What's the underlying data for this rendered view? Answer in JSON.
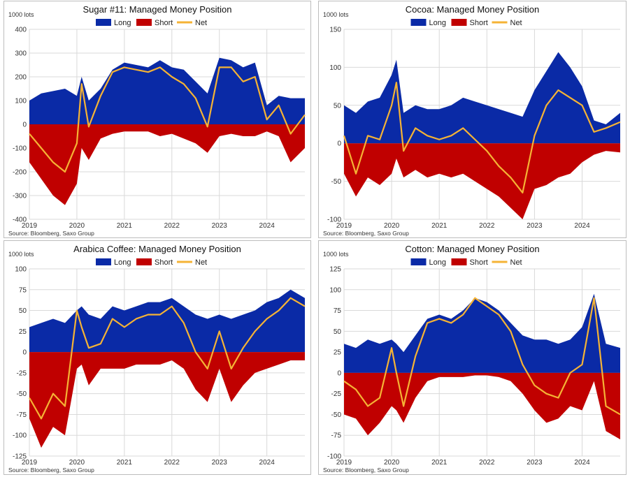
{
  "colors": {
    "long": "#0a2aa6",
    "short": "#c00000",
    "net": "#f5b335",
    "grid": "#d9d9d9"
  },
  "chart_data": [
    {
      "type": "area",
      "title": "Sugar #11: Managed Money Position",
      "unit_label": "1000 lots",
      "source": "Source: Bloomberg, Saxo Group",
      "ylim": [
        -400,
        400
      ],
      "yticks": [
        -400,
        -300,
        -200,
        -100,
        0,
        100,
        200,
        300,
        400
      ],
      "xlim": [
        2019.0,
        2024.8
      ],
      "xticks": [
        "2019",
        "2020",
        "2021",
        "2022",
        "2023",
        "2024"
      ],
      "series": [
        {
          "name": "Long",
          "x": [
            2019.0,
            2019.25,
            2019.5,
            2019.75,
            2020.0,
            2020.1,
            2020.25,
            2020.5,
            2020.75,
            2021.0,
            2021.25,
            2021.5,
            2021.75,
            2022.0,
            2022.25,
            2022.5,
            2022.75,
            2023.0,
            2023.25,
            2023.5,
            2023.75,
            2024.0,
            2024.25,
            2024.5,
            2024.8
          ],
          "values": [
            100,
            130,
            140,
            150,
            120,
            200,
            100,
            150,
            230,
            260,
            250,
            240,
            270,
            240,
            230,
            180,
            130,
            280,
            270,
            240,
            260,
            80,
            120,
            110,
            110
          ]
        },
        {
          "name": "Short",
          "x": [
            2019.0,
            2019.25,
            2019.5,
            2019.75,
            2020.0,
            2020.1,
            2020.25,
            2020.5,
            2020.75,
            2021.0,
            2021.25,
            2021.5,
            2021.75,
            2022.0,
            2022.25,
            2022.5,
            2022.75,
            2023.0,
            2023.25,
            2023.5,
            2023.75,
            2024.0,
            2024.25,
            2024.5,
            2024.8
          ],
          "values": [
            -160,
            -230,
            -300,
            -340,
            -250,
            -100,
            -150,
            -60,
            -40,
            -30,
            -30,
            -30,
            -50,
            -40,
            -60,
            -80,
            -120,
            -50,
            -40,
            -50,
            -50,
            -30,
            -50,
            -160,
            -100
          ]
        },
        {
          "name": "Net",
          "x": [
            2019.0,
            2019.25,
            2019.5,
            2019.75,
            2020.0,
            2020.1,
            2020.25,
            2020.5,
            2020.75,
            2021.0,
            2021.25,
            2021.5,
            2021.75,
            2022.0,
            2022.25,
            2022.5,
            2022.75,
            2023.0,
            2023.25,
            2023.5,
            2023.75,
            2024.0,
            2024.25,
            2024.5,
            2024.8
          ],
          "values": [
            -40,
            -100,
            -160,
            -200,
            -80,
            170,
            -10,
            120,
            220,
            240,
            230,
            220,
            240,
            200,
            170,
            110,
            -10,
            240,
            240,
            180,
            200,
            20,
            80,
            -40,
            40
          ]
        }
      ]
    },
    {
      "type": "area",
      "title": "Cocoa: Managed Money Position",
      "unit_label": "1000 lots",
      "source": "Source: Bloomberg, Saxo Group",
      "ylim": [
        -100,
        150
      ],
      "yticks": [
        -100,
        -50,
        0,
        50,
        100,
        150
      ],
      "xlim": [
        2019.0,
        2024.8
      ],
      "xticks": [
        "2019",
        "2020",
        "2021",
        "2022",
        "2023",
        "2024"
      ],
      "series": [
        {
          "name": "Long",
          "x": [
            2019.0,
            2019.25,
            2019.5,
            2019.75,
            2020.0,
            2020.1,
            2020.25,
            2020.5,
            2020.75,
            2021.0,
            2021.25,
            2021.5,
            2021.75,
            2022.0,
            2022.25,
            2022.5,
            2022.75,
            2023.0,
            2023.25,
            2023.5,
            2023.75,
            2024.0,
            2024.25,
            2024.5,
            2024.8
          ],
          "values": [
            50,
            40,
            55,
            60,
            90,
            110,
            40,
            50,
            45,
            45,
            50,
            60,
            55,
            50,
            45,
            40,
            35,
            70,
            95,
            120,
            100,
            75,
            30,
            25,
            40
          ]
        },
        {
          "name": "Short",
          "x": [
            2019.0,
            2019.25,
            2019.5,
            2019.75,
            2020.0,
            2020.1,
            2020.25,
            2020.5,
            2020.75,
            2021.0,
            2021.25,
            2021.5,
            2021.75,
            2022.0,
            2022.25,
            2022.5,
            2022.75,
            2023.0,
            2023.25,
            2023.5,
            2023.75,
            2024.0,
            2024.25,
            2024.5,
            2024.8
          ],
          "values": [
            -40,
            -70,
            -45,
            -55,
            -40,
            -20,
            -45,
            -35,
            -45,
            -40,
            -45,
            -40,
            -50,
            -60,
            -70,
            -85,
            -100,
            -60,
            -55,
            -45,
            -40,
            -25,
            -15,
            -10,
            -12
          ]
        },
        {
          "name": "Net",
          "x": [
            2019.0,
            2019.25,
            2019.5,
            2019.75,
            2020.0,
            2020.1,
            2020.25,
            2020.5,
            2020.75,
            2021.0,
            2021.25,
            2021.5,
            2021.75,
            2022.0,
            2022.25,
            2022.5,
            2022.75,
            2023.0,
            2023.25,
            2023.5,
            2023.75,
            2024.0,
            2024.25,
            2024.5,
            2024.8
          ],
          "values": [
            10,
            -40,
            10,
            5,
            50,
            80,
            -10,
            20,
            10,
            5,
            10,
            20,
            5,
            -10,
            -30,
            -45,
            -65,
            10,
            50,
            70,
            60,
            50,
            15,
            20,
            28
          ]
        }
      ]
    },
    {
      "type": "area",
      "title": "Arabica Coffee: Managed Money Position",
      "unit_label": "1000 lots",
      "source": "Source: Bloomberg, Saxo Group",
      "ylim": [
        -125,
        100
      ],
      "yticks": [
        -125,
        -100,
        -75,
        -50,
        -25,
        0,
        25,
        50,
        75,
        100
      ],
      "xlim": [
        2019.0,
        2024.8
      ],
      "xticks": [
        "2019",
        "2020",
        "2021",
        "2022",
        "2023",
        "2024"
      ],
      "series": [
        {
          "name": "Long",
          "x": [
            2019.0,
            2019.25,
            2019.5,
            2019.75,
            2020.0,
            2020.1,
            2020.25,
            2020.5,
            2020.75,
            2021.0,
            2021.25,
            2021.5,
            2021.75,
            2022.0,
            2022.25,
            2022.5,
            2022.75,
            2023.0,
            2023.25,
            2023.5,
            2023.75,
            2024.0,
            2024.25,
            2024.5,
            2024.8
          ],
          "values": [
            30,
            35,
            40,
            35,
            50,
            55,
            45,
            40,
            55,
            50,
            55,
            60,
            60,
            65,
            55,
            45,
            40,
            45,
            40,
            45,
            50,
            60,
            65,
            75,
            65
          ]
        },
        {
          "name": "Short",
          "x": [
            2019.0,
            2019.25,
            2019.5,
            2019.75,
            2020.0,
            2020.1,
            2020.25,
            2020.5,
            2020.75,
            2021.0,
            2021.25,
            2021.5,
            2021.75,
            2022.0,
            2022.25,
            2022.5,
            2022.75,
            2023.0,
            2023.25,
            2023.5,
            2023.75,
            2024.0,
            2024.25,
            2024.5,
            2024.8
          ],
          "values": [
            -80,
            -115,
            -90,
            -100,
            -20,
            -15,
            -40,
            -20,
            -20,
            -20,
            -15,
            -15,
            -15,
            -10,
            -20,
            -45,
            -60,
            -20,
            -60,
            -40,
            -25,
            -20,
            -15,
            -10,
            -10
          ]
        },
        {
          "name": "Net",
          "x": [
            2019.0,
            2019.25,
            2019.5,
            2019.75,
            2020.0,
            2020.1,
            2020.25,
            2020.5,
            2020.75,
            2021.0,
            2021.25,
            2021.5,
            2021.75,
            2022.0,
            2022.25,
            2022.5,
            2022.75,
            2023.0,
            2023.25,
            2023.5,
            2023.75,
            2024.0,
            2024.25,
            2024.5,
            2024.8
          ],
          "values": [
            -55,
            -80,
            -50,
            -65,
            50,
            30,
            5,
            10,
            40,
            30,
            40,
            45,
            45,
            55,
            35,
            0,
            -20,
            25,
            -20,
            5,
            25,
            40,
            50,
            65,
            55
          ]
        }
      ]
    },
    {
      "type": "area",
      "title": "Cotton: Managed Money Position",
      "unit_label": "1000 lots",
      "source": "Source: Bloomberg, Saxo Group",
      "ylim": [
        -100,
        125
      ],
      "yticks": [
        -100,
        -75,
        -50,
        -25,
        0,
        25,
        50,
        75,
        100,
        125
      ],
      "xlim": [
        2019.0,
        2024.8
      ],
      "xticks": [
        "2019",
        "2020",
        "2021",
        "2022",
        "2023",
        "2024"
      ],
      "series": [
        {
          "name": "Long",
          "x": [
            2019.0,
            2019.25,
            2019.5,
            2019.75,
            2020.0,
            2020.1,
            2020.25,
            2020.5,
            2020.75,
            2021.0,
            2021.25,
            2021.5,
            2021.75,
            2022.0,
            2022.25,
            2022.5,
            2022.75,
            2023.0,
            2023.25,
            2023.5,
            2023.75,
            2024.0,
            2024.25,
            2024.5,
            2024.8
          ],
          "values": [
            35,
            30,
            40,
            35,
            40,
            35,
            25,
            45,
            65,
            70,
            65,
            75,
            90,
            85,
            75,
            60,
            45,
            40,
            40,
            35,
            40,
            55,
            95,
            35,
            30
          ]
        },
        {
          "name": "Short",
          "x": [
            2019.0,
            2019.25,
            2019.5,
            2019.75,
            2020.0,
            2020.1,
            2020.25,
            2020.5,
            2020.75,
            2021.0,
            2021.25,
            2021.5,
            2021.75,
            2022.0,
            2022.25,
            2022.5,
            2022.75,
            2023.0,
            2023.25,
            2023.5,
            2023.75,
            2024.0,
            2024.25,
            2024.5,
            2024.8
          ],
          "values": [
            -50,
            -55,
            -75,
            -60,
            -40,
            -45,
            -60,
            -30,
            -10,
            -5,
            -5,
            -5,
            -3,
            -3,
            -5,
            -10,
            -25,
            -45,
            -60,
            -55,
            -40,
            -45,
            -10,
            -70,
            -80
          ]
        },
        {
          "name": "Net",
          "x": [
            2019.0,
            2019.25,
            2019.5,
            2019.75,
            2020.0,
            2020.1,
            2020.25,
            2020.5,
            2020.75,
            2021.0,
            2021.25,
            2021.5,
            2021.75,
            2022.0,
            2022.25,
            2022.5,
            2022.75,
            2023.0,
            2023.25,
            2023.5,
            2023.75,
            2024.0,
            2024.25,
            2024.5,
            2024.8
          ],
          "values": [
            -10,
            -20,
            -40,
            -30,
            30,
            0,
            -40,
            20,
            60,
            65,
            60,
            70,
            90,
            80,
            70,
            50,
            10,
            -15,
            -25,
            -30,
            0,
            10,
            90,
            -40,
            -50
          ]
        }
      ]
    }
  ]
}
